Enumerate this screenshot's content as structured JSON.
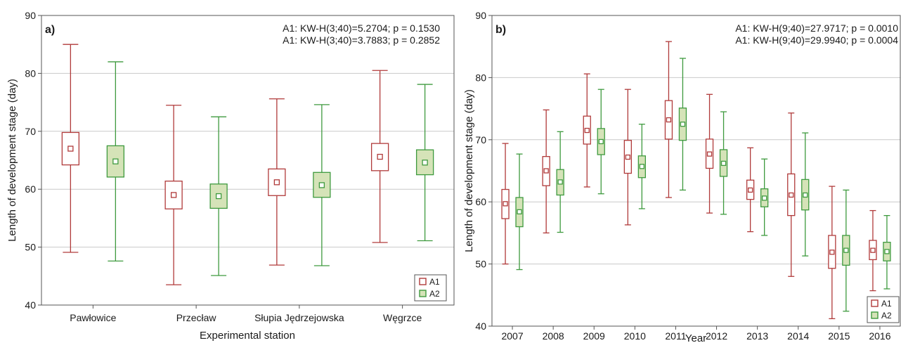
{
  "colors": {
    "A1": "#b03a3a",
    "A2": "#3e9a3e",
    "A2_fill": "#d5e3b8",
    "grid": "#c9c9c9",
    "axis": "#555555"
  },
  "chart_data": [
    {
      "type": "boxplot",
      "panel_label": "a)",
      "xlabel": "Experimental station",
      "ylabel": "Length of development stage (day)",
      "ylim": [
        40,
        90
      ],
      "yticks": [
        40,
        50,
        60,
        70,
        80,
        90
      ],
      "grid": "horizontal",
      "legend_position": "bottom-right",
      "annotations": [
        "A1: KW-H(3;40)=5.2704; p = 0.1530",
        "A1: KW-H(3;40)=3.7883; p = 0.2852"
      ],
      "categories": [
        "Pawłowice",
        "Przecław",
        "Słupia Jędrzejowska",
        "Węgrzce"
      ],
      "series": [
        {
          "name": "A1",
          "boxes": [
            {
              "min": 49.1,
              "q1": 64.2,
              "median": 67.0,
              "q3": 69.8,
              "max": 85.0
            },
            {
              "min": 43.5,
              "q1": 56.6,
              "median": 59.0,
              "q3": 61.4,
              "max": 74.5
            },
            {
              "min": 46.9,
              "q1": 58.9,
              "median": 61.2,
              "q3": 63.5,
              "max": 75.6
            },
            {
              "min": 50.8,
              "q1": 63.2,
              "median": 65.6,
              "q3": 67.9,
              "max": 80.5
            }
          ]
        },
        {
          "name": "A2",
          "boxes": [
            {
              "min": 47.6,
              "q1": 62.1,
              "median": 64.8,
              "q3": 67.5,
              "max": 82.0
            },
            {
              "min": 45.1,
              "q1": 56.7,
              "median": 58.8,
              "q3": 60.9,
              "max": 72.5
            },
            {
              "min": 46.8,
              "q1": 58.6,
              "median": 60.7,
              "q3": 62.9,
              "max": 74.6
            },
            {
              "min": 51.1,
              "q1": 62.5,
              "median": 64.6,
              "q3": 66.8,
              "max": 78.1
            }
          ]
        }
      ]
    },
    {
      "type": "boxplot",
      "panel_label": "b)",
      "xlabel": "Year",
      "ylabel": "Length of development stage (day)",
      "ylim": [
        40,
        90
      ],
      "yticks": [
        40,
        50,
        60,
        70,
        80,
        90
      ],
      "grid": "horizontal",
      "legend_position": "bottom-right",
      "annotations": [
        "A1: KW-H(9;40)=27.9717; p = 0.0010",
        "A1: KW-H(9;40)=29.9940; p = 0.0004"
      ],
      "categories": [
        "2007",
        "2008",
        "2009",
        "2010",
        "2011",
        "2012",
        "2013",
        "2014",
        "2015",
        "2016"
      ],
      "series": [
        {
          "name": "A1",
          "boxes": [
            {
              "min": 50.0,
              "q1": 57.3,
              "median": 59.7,
              "q3": 62.0,
              "max": 69.4
            },
            {
              "min": 55.0,
              "q1": 62.6,
              "median": 65.0,
              "q3": 67.3,
              "max": 74.8
            },
            {
              "min": 62.4,
              "q1": 69.3,
              "median": 71.5,
              "q3": 73.8,
              "max": 80.6
            },
            {
              "min": 56.3,
              "q1": 64.6,
              "median": 67.2,
              "q3": 69.9,
              "max": 78.1
            },
            {
              "min": 60.7,
              "q1": 70.1,
              "median": 73.2,
              "q3": 76.3,
              "max": 85.8
            },
            {
              "min": 58.2,
              "q1": 65.4,
              "median": 67.7,
              "q3": 70.1,
              "max": 77.3
            },
            {
              "min": 55.2,
              "q1": 60.4,
              "median": 61.9,
              "q3": 63.5,
              "max": 68.7
            },
            {
              "min": 48.0,
              "q1": 57.8,
              "median": 61.1,
              "q3": 64.5,
              "max": 74.3
            },
            {
              "min": 41.2,
              "q1": 49.3,
              "median": 51.9,
              "q3": 54.6,
              "max": 62.5
            },
            {
              "min": 45.7,
              "q1": 50.7,
              "median": 52.2,
              "q3": 53.8,
              "max": 58.6
            }
          ]
        },
        {
          "name": "A2",
          "boxes": [
            {
              "min": 49.1,
              "q1": 56.0,
              "median": 58.4,
              "q3": 60.7,
              "max": 67.7
            },
            {
              "min": 55.1,
              "q1": 61.1,
              "median": 63.2,
              "q3": 65.2,
              "max": 71.3
            },
            {
              "min": 61.3,
              "q1": 67.6,
              "median": 69.7,
              "q3": 71.8,
              "max": 78.1
            },
            {
              "min": 58.9,
              "q1": 63.9,
              "median": 65.7,
              "q3": 67.4,
              "max": 72.5
            },
            {
              "min": 61.9,
              "q1": 69.9,
              "median": 72.5,
              "q3": 75.1,
              "max": 83.1
            },
            {
              "min": 58.0,
              "q1": 64.1,
              "median": 66.2,
              "q3": 68.4,
              "max": 74.5
            },
            {
              "min": 54.6,
              "q1": 59.2,
              "median": 60.6,
              "q3": 62.1,
              "max": 66.9
            },
            {
              "min": 51.3,
              "q1": 58.7,
              "median": 61.1,
              "q3": 63.6,
              "max": 71.1
            },
            {
              "min": 42.4,
              "q1": 49.8,
              "median": 52.2,
              "q3": 54.6,
              "max": 61.9
            },
            {
              "min": 46.0,
              "q1": 50.5,
              "median": 52.0,
              "q3": 53.5,
              "max": 57.8
            }
          ]
        }
      ]
    }
  ]
}
